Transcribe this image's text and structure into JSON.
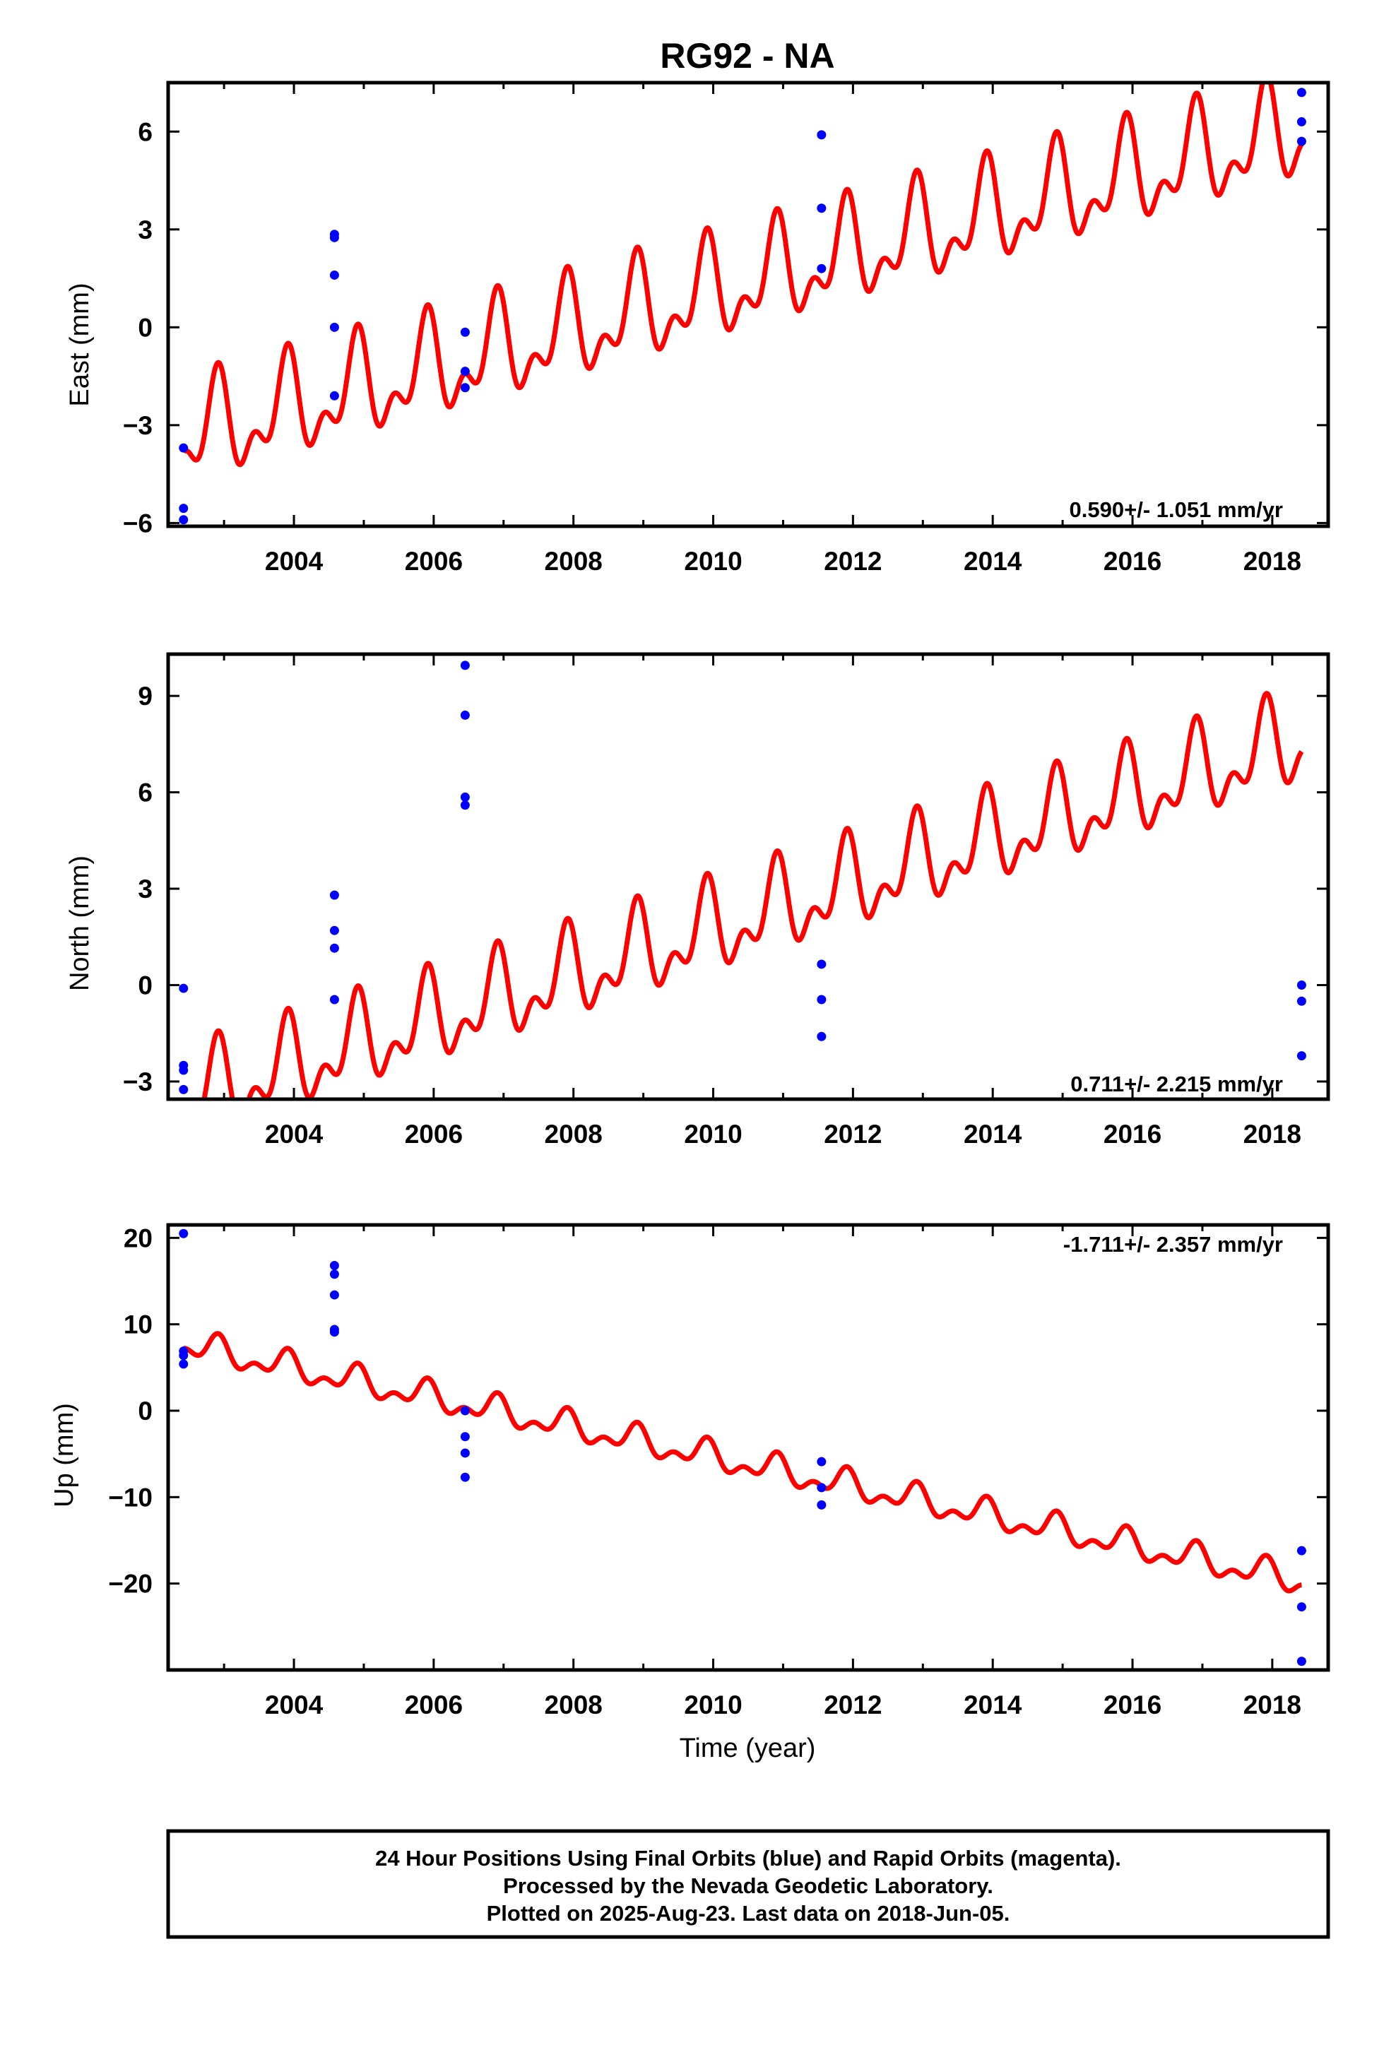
{
  "title": "RG92 - NA",
  "colors": {
    "model": "#ff0000",
    "final_orbits": "#0000ff",
    "frame": "#000000"
  },
  "chart_data": [
    {
      "type": "scatter",
      "panel": "east",
      "ylabel": "East (mm)",
      "xlabel": "",
      "xlim": [
        2002.2,
        2018.8
      ],
      "ylim": [
        -6.1,
        7.5
      ],
      "xticks": [
        2004,
        2006,
        2008,
        2010,
        2012,
        2014,
        2016,
        2018
      ],
      "xtick_labels": [
        "2004",
        "2006",
        "2008",
        "2010",
        "2012",
        "2014",
        "2016",
        "2018"
      ],
      "yticks": [
        -6,
        -3,
        0,
        3,
        6
      ],
      "ytick_labels": [
        "−6",
        "−3",
        "0",
        "3",
        "6"
      ],
      "rate_label": "0.590+/- 1.051 mm/yr",
      "rate_position": "bottom-right",
      "points": [
        [
          2002.42,
          -3.7
        ],
        [
          2002.42,
          -5.55
        ],
        [
          2002.42,
          -5.9
        ],
        [
          2004.58,
          2.85
        ],
        [
          2004.58,
          2.75
        ],
        [
          2004.58,
          1.6
        ],
        [
          2004.58,
          0.0
        ],
        [
          2004.58,
          -2.1
        ],
        [
          2006.45,
          -0.15
        ],
        [
          2006.45,
          -1.35
        ],
        [
          2006.45,
          -1.85
        ],
        [
          2011.55,
          5.9
        ],
        [
          2011.55,
          3.65
        ],
        [
          2011.55,
          1.8
        ],
        [
          2018.42,
          7.2
        ],
        [
          2018.42,
          6.3
        ],
        [
          2018.42,
          5.7
        ]
      ],
      "model": {
        "start": 2002.42,
        "end": 2018.42,
        "offset": -3.4,
        "slope": 0.59,
        "annual": 1.25,
        "annual_phase": 4.9,
        "semiannual": 0.8,
        "semiannual_phase": 1.5
      }
    },
    {
      "type": "scatter",
      "panel": "north",
      "ylabel": "North (mm)",
      "xlabel": "",
      "xlim": [
        2002.2,
        2018.8
      ],
      "ylim": [
        -3.55,
        10.3
      ],
      "xticks": [
        2004,
        2006,
        2008,
        2010,
        2012,
        2014,
        2016,
        2018
      ],
      "xtick_labels": [
        "2004",
        "2006",
        "2008",
        "2010",
        "2012",
        "2014",
        "2016",
        "2018"
      ],
      "yticks": [
        -3,
        0,
        3,
        6,
        9
      ],
      "ytick_labels": [
        "−3",
        "0",
        "3",
        "6",
        "9"
      ],
      "rate_label": "0.711+/- 2.215 mm/yr",
      "rate_position": "bottom-right",
      "points": [
        [
          2002.42,
          -0.1
        ],
        [
          2002.42,
          -2.5
        ],
        [
          2002.42,
          -2.65
        ],
        [
          2002.42,
          -3.25
        ],
        [
          2004.58,
          2.8
        ],
        [
          2004.58,
          1.7
        ],
        [
          2004.58,
          1.15
        ],
        [
          2004.58,
          -0.45
        ],
        [
          2006.45,
          9.95
        ],
        [
          2006.45,
          8.4
        ],
        [
          2006.45,
          5.85
        ],
        [
          2006.45,
          5.6
        ],
        [
          2011.55,
          0.65
        ],
        [
          2011.55,
          -0.45
        ],
        [
          2011.55,
          -1.6
        ],
        [
          2018.42,
          0.0
        ],
        [
          2018.42,
          -0.5
        ],
        [
          2018.42,
          -2.2
        ]
      ],
      "model": {
        "start": 2002.42,
        "end": 2018.42,
        "offset": -3.6,
        "slope": 0.7,
        "annual": 1.1,
        "annual_phase": 4.9,
        "semiannual": 0.75,
        "semiannual_phase": 1.5
      }
    },
    {
      "type": "scatter",
      "panel": "up",
      "ylabel": "Up (mm)",
      "xlabel": "Time (year)",
      "xlim": [
        2002.2,
        2018.8
      ],
      "ylim": [
        -30,
        21.5
      ],
      "xticks": [
        2004,
        2006,
        2008,
        2010,
        2012,
        2014,
        2016,
        2018
      ],
      "xtick_labels": [
        "2004",
        "2006",
        "2008",
        "2010",
        "2012",
        "2014",
        "2016",
        "2018"
      ],
      "yticks": [
        -20,
        -10,
        0,
        10,
        20
      ],
      "ytick_labels": [
        "−20",
        "−10",
        "0",
        "10",
        "20"
      ],
      "rate_label": "-1.711+/- 2.357 mm/yr",
      "rate_position": "top-right",
      "points": [
        [
          2002.42,
          20.5
        ],
        [
          2002.42,
          6.9
        ],
        [
          2002.42,
          6.4
        ],
        [
          2002.42,
          5.4
        ],
        [
          2004.58,
          16.8
        ],
        [
          2004.58,
          15.8
        ],
        [
          2004.58,
          13.4
        ],
        [
          2004.58,
          9.4
        ],
        [
          2004.58,
          9.1
        ],
        [
          2006.45,
          0.0
        ],
        [
          2006.45,
          -3.0
        ],
        [
          2006.45,
          -4.9
        ],
        [
          2006.45,
          -7.7
        ],
        [
          2011.55,
          -5.9
        ],
        [
          2011.55,
          -8.9
        ],
        [
          2011.55,
          -10.9
        ],
        [
          2018.42,
          -16.2
        ],
        [
          2018.42,
          -22.7
        ],
        [
          2018.42,
          -29.0
        ]
      ],
      "model": {
        "start": 2002.42,
        "end": 2018.42,
        "offset": 7.6,
        "slope": -1.711,
        "annual": 1.3,
        "annual_phase": 4.9,
        "semiannual": 0.9,
        "semiannual_phase": 1.5
      }
    }
  ],
  "footer": {
    "line1": "24 Hour Positions Using Final Orbits (blue) and Rapid Orbits (magenta).",
    "line2": "Processed by the Nevada Geodetic Laboratory.",
    "line3": "Plotted on 2025-Aug-23. Last data on 2018-Jun-05."
  }
}
